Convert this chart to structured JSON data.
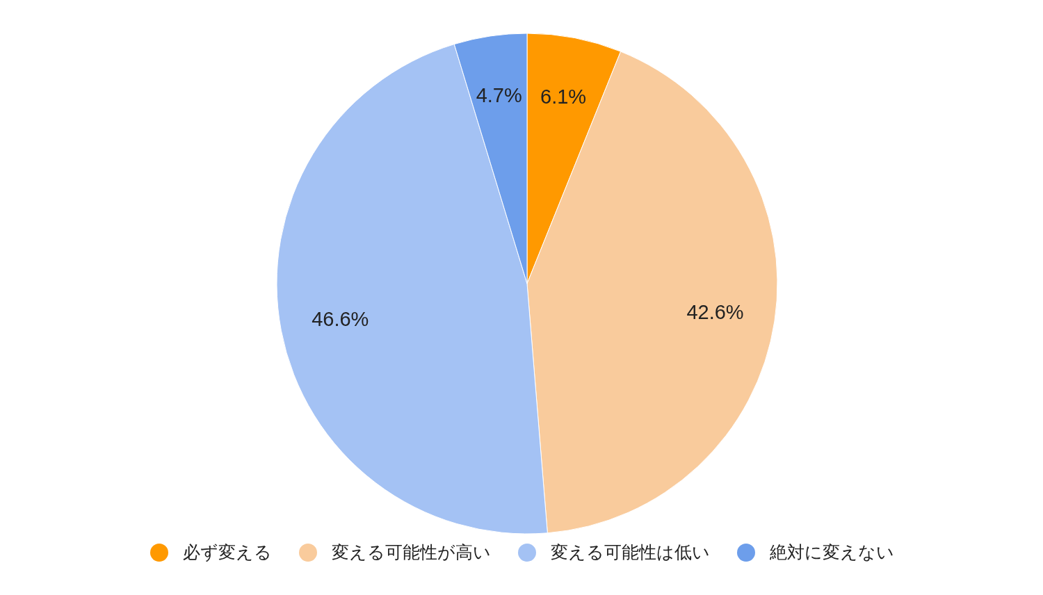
{
  "chart_data": {
    "type": "pie",
    "categories": [
      "必ず変える",
      "変える可能性が高い",
      "変える可能性は低い",
      "絶対に変えない"
    ],
    "values": [
      6.1,
      42.6,
      46.6,
      4.7
    ],
    "colors": [
      "#ff9900",
      "#f9cb9c",
      "#a4c2f4",
      "#6d9eeb"
    ],
    "value_labels": [
      "6.1%",
      "42.6%",
      "46.6%",
      "4.7%"
    ],
    "legend": "bottom"
  }
}
